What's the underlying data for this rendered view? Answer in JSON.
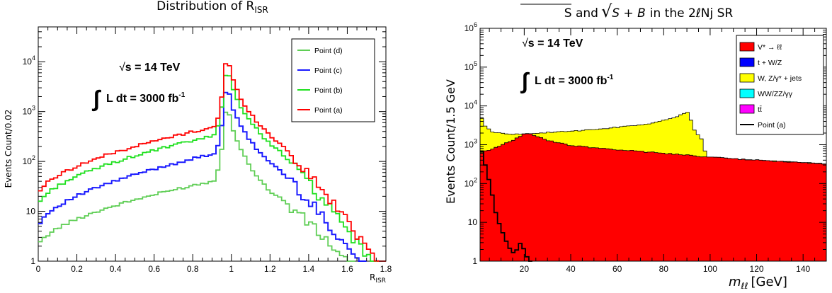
{
  "chart_data": [
    {
      "type": "line",
      "title_main": "Distribution of R",
      "title_sub": "ISR",
      "xlabel_main": "R",
      "xlabel_sub": "ISR",
      "ylabel": "Events Count/0.02",
      "xlim": [
        0,
        1.8
      ],
      "ylim": [
        1,
        50000
      ],
      "yscale": "log",
      "xticks": [
        "0",
        "0.2",
        "0.4",
        "0.6",
        "0.8",
        "1",
        "1.2",
        "1.4",
        "1.6",
        "1.8"
      ],
      "yticks": [
        "1",
        "10",
        "10",
        "10",
        "10"
      ],
      "ytick_exps": [
        "",
        "",
        "2",
        "3",
        "4"
      ],
      "annotations": {
        "sqrt_sym": "√",
        "energy": "s = 14 TeV",
        "integral_sym": "∫",
        "lumi": "L dt = 3000 fb",
        "lumi_exp": "-1"
      },
      "legend_position": "top-right",
      "series": [
        {
          "name": "Point (d)",
          "color": "#5fce55",
          "peak": 3000,
          "start": 1.8,
          "left_at_0.9": 40,
          "right_at_1.2": 25,
          "end_x": 1.6
        },
        {
          "name": "Point (c)",
          "color": "#1a1aff",
          "peak": 6000,
          "start": 4.5,
          "left_at_0.9": 140,
          "right_at_1.2": 95,
          "end_x": 1.66
        },
        {
          "name": "Point (b)",
          "color": "#1fe01f",
          "peak": 15000,
          "start": 12,
          "left_at_0.9": 320,
          "right_at_1.2": 230,
          "end_x": 1.72
        },
        {
          "name": "Point (a)",
          "color": "#ff0000",
          "peak": 24000,
          "start": 20,
          "left_at_0.9": 480,
          "right_at_1.2": 330,
          "end_x": 1.76
        }
      ]
    },
    {
      "type": "area",
      "title_left": "S and",
      "title_rad": "S + B",
      "title_right": "in the 2ℓNj SR",
      "xlabel": "m",
      "xlabel_sub": "ℓℓ",
      "xlabel_unit": "[GeV]",
      "ylabel": "Events Count/1.5 GeV",
      "xlim": [
        1,
        150
      ],
      "ylim": [
        1,
        1000000
      ],
      "yscale": "log",
      "xticks": [
        "20",
        "40",
        "60",
        "80",
        "100",
        "120",
        "140"
      ],
      "yticks": [
        "1",
        "10",
        "10",
        "10",
        "10",
        "10",
        "10"
      ],
      "ytick_exps": [
        "",
        "",
        "2",
        "3",
        "4",
        "5",
        "6"
      ],
      "annotations": {
        "sqrt_sym": "√",
        "energy": "s = 14 TeV",
        "integral_sym": "∫",
        "lumi": "L dt = 3000 fb",
        "lumi_exp": "-1"
      },
      "legend_position": "top-right",
      "series": [
        {
          "name": "V* → ℓℓ",
          "color": "#ff0000"
        },
        {
          "name": "t + W/Z",
          "color": "#0000ff"
        },
        {
          "name": "W, Z/γ* + jets",
          "color": "#ffff00"
        },
        {
          "name": "WW/ZZ/γγ",
          "color": "#00ffff"
        },
        {
          "name": "tt̄",
          "color": "#ff00ff"
        },
        {
          "name": "Point (a)",
          "color": "#000000"
        }
      ],
      "red_profile": {
        "x": [
          1,
          5,
          10,
          15,
          20,
          22,
          30,
          40,
          60,
          80,
          100,
          120,
          150
        ],
        "y": [
          600,
          750,
          950,
          1300,
          1900,
          2000,
          1300,
          950,
          750,
          600,
          480,
          400,
          320
        ]
      },
      "yellow_profile": {
        "x": [
          1,
          3,
          6,
          10,
          15,
          22,
          40,
          60,
          75,
          85,
          90,
          91,
          93,
          97,
          98
        ],
        "y": [
          6000,
          3200,
          2200,
          2000,
          1900,
          1950,
          2200,
          2800,
          3600,
          5000,
          7000,
          6000,
          2500,
          1200,
          560
        ]
      },
      "signal_profile": {
        "x": [
          1,
          4,
          6,
          8,
          10,
          12,
          14,
          16,
          18,
          20,
          22,
          23
        ],
        "y": [
          1000,
          200,
          60,
          15,
          7,
          3.5,
          2,
          1.5,
          3,
          2,
          1,
          1
        ]
      }
    }
  ]
}
